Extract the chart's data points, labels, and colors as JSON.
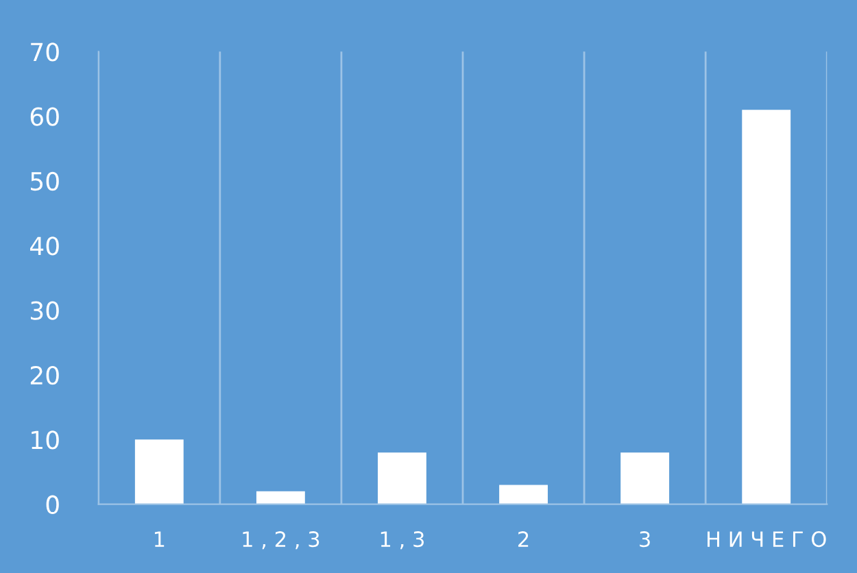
{
  "chart_data": {
    "type": "bar",
    "categories": [
      "1",
      "1 , 2 , 3",
      "1 , 3",
      "2",
      "3",
      "Н И Ч Е Г О"
    ],
    "values": [
      10,
      2,
      8,
      3,
      8,
      61
    ],
    "color": "#ffffff",
    "ylim": [
      0,
      70
    ],
    "yticks": [
      0,
      10,
      20,
      30,
      40,
      50,
      60,
      70
    ],
    "grid": "x",
    "legend": false
  }
}
